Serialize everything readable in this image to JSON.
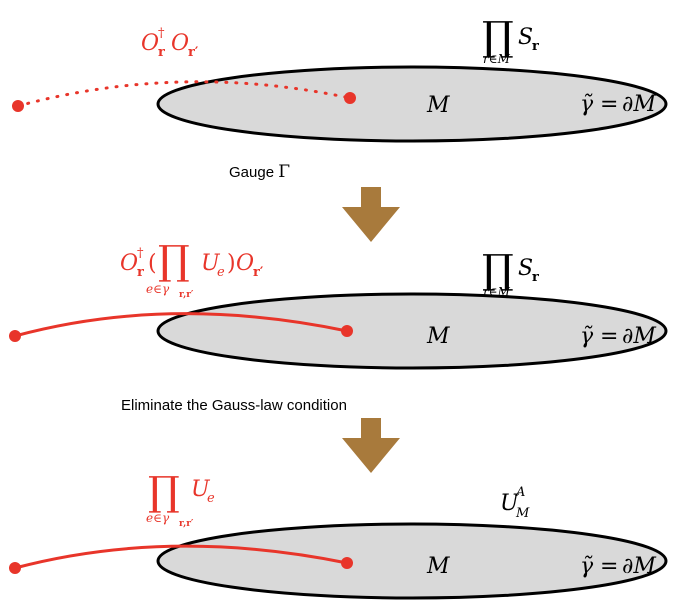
{
  "colors": {
    "ellipse_fill": "#d9d9d9",
    "ellipse_stroke": "#000000",
    "red": "#e8352a",
    "arrow": "#a87a3c",
    "text": "#000000"
  },
  "panels": [
    {
      "region": "M",
      "boundary": {
        "lhs": "γ̃",
        "eq": "=",
        "rhs": "∂M"
      },
      "operator": {
        "O1": "O",
        "dagger": "†",
        "r": "r",
        "O2": "O",
        "r2": "r′"
      },
      "product": {
        "symbol": "∏",
        "base": "S",
        "sub": "r",
        "index": "r∈M"
      },
      "string_style": "dotted"
    },
    {
      "region": "M",
      "boundary": {
        "lhs": "γ̃",
        "eq": "=",
        "rhs": "∂M"
      },
      "operator": {
        "O1": "O",
        "dagger": "†",
        "r": "r",
        "lparen": "(",
        "prod": "∏",
        "U": "U",
        "e": "e",
        "rparen": ")",
        "O2": "O",
        "r2": "r′",
        "index_e": "e∈γ",
        "index_sub": "r,r′"
      },
      "product": {
        "symbol": "∏",
        "base": "S",
        "sub": "r",
        "index": "r∈M"
      },
      "string_style": "solid"
    },
    {
      "region": "M",
      "boundary": {
        "lhs": "γ̃",
        "eq": "=",
        "rhs": "∂M"
      },
      "operator": {
        "prod": "∏",
        "U": "U",
        "e": "e",
        "index_e": "e∈γ",
        "index_sub": "r,r′"
      },
      "unitary": {
        "base": "U",
        "sub": "M",
        "sup": "A"
      },
      "string_style": "solid"
    }
  ],
  "steps": [
    {
      "prefix": "Gauge ",
      "symbol": "Γ"
    },
    {
      "prefix": "Eliminate the Gauss-law condition",
      "symbol": ""
    }
  ]
}
